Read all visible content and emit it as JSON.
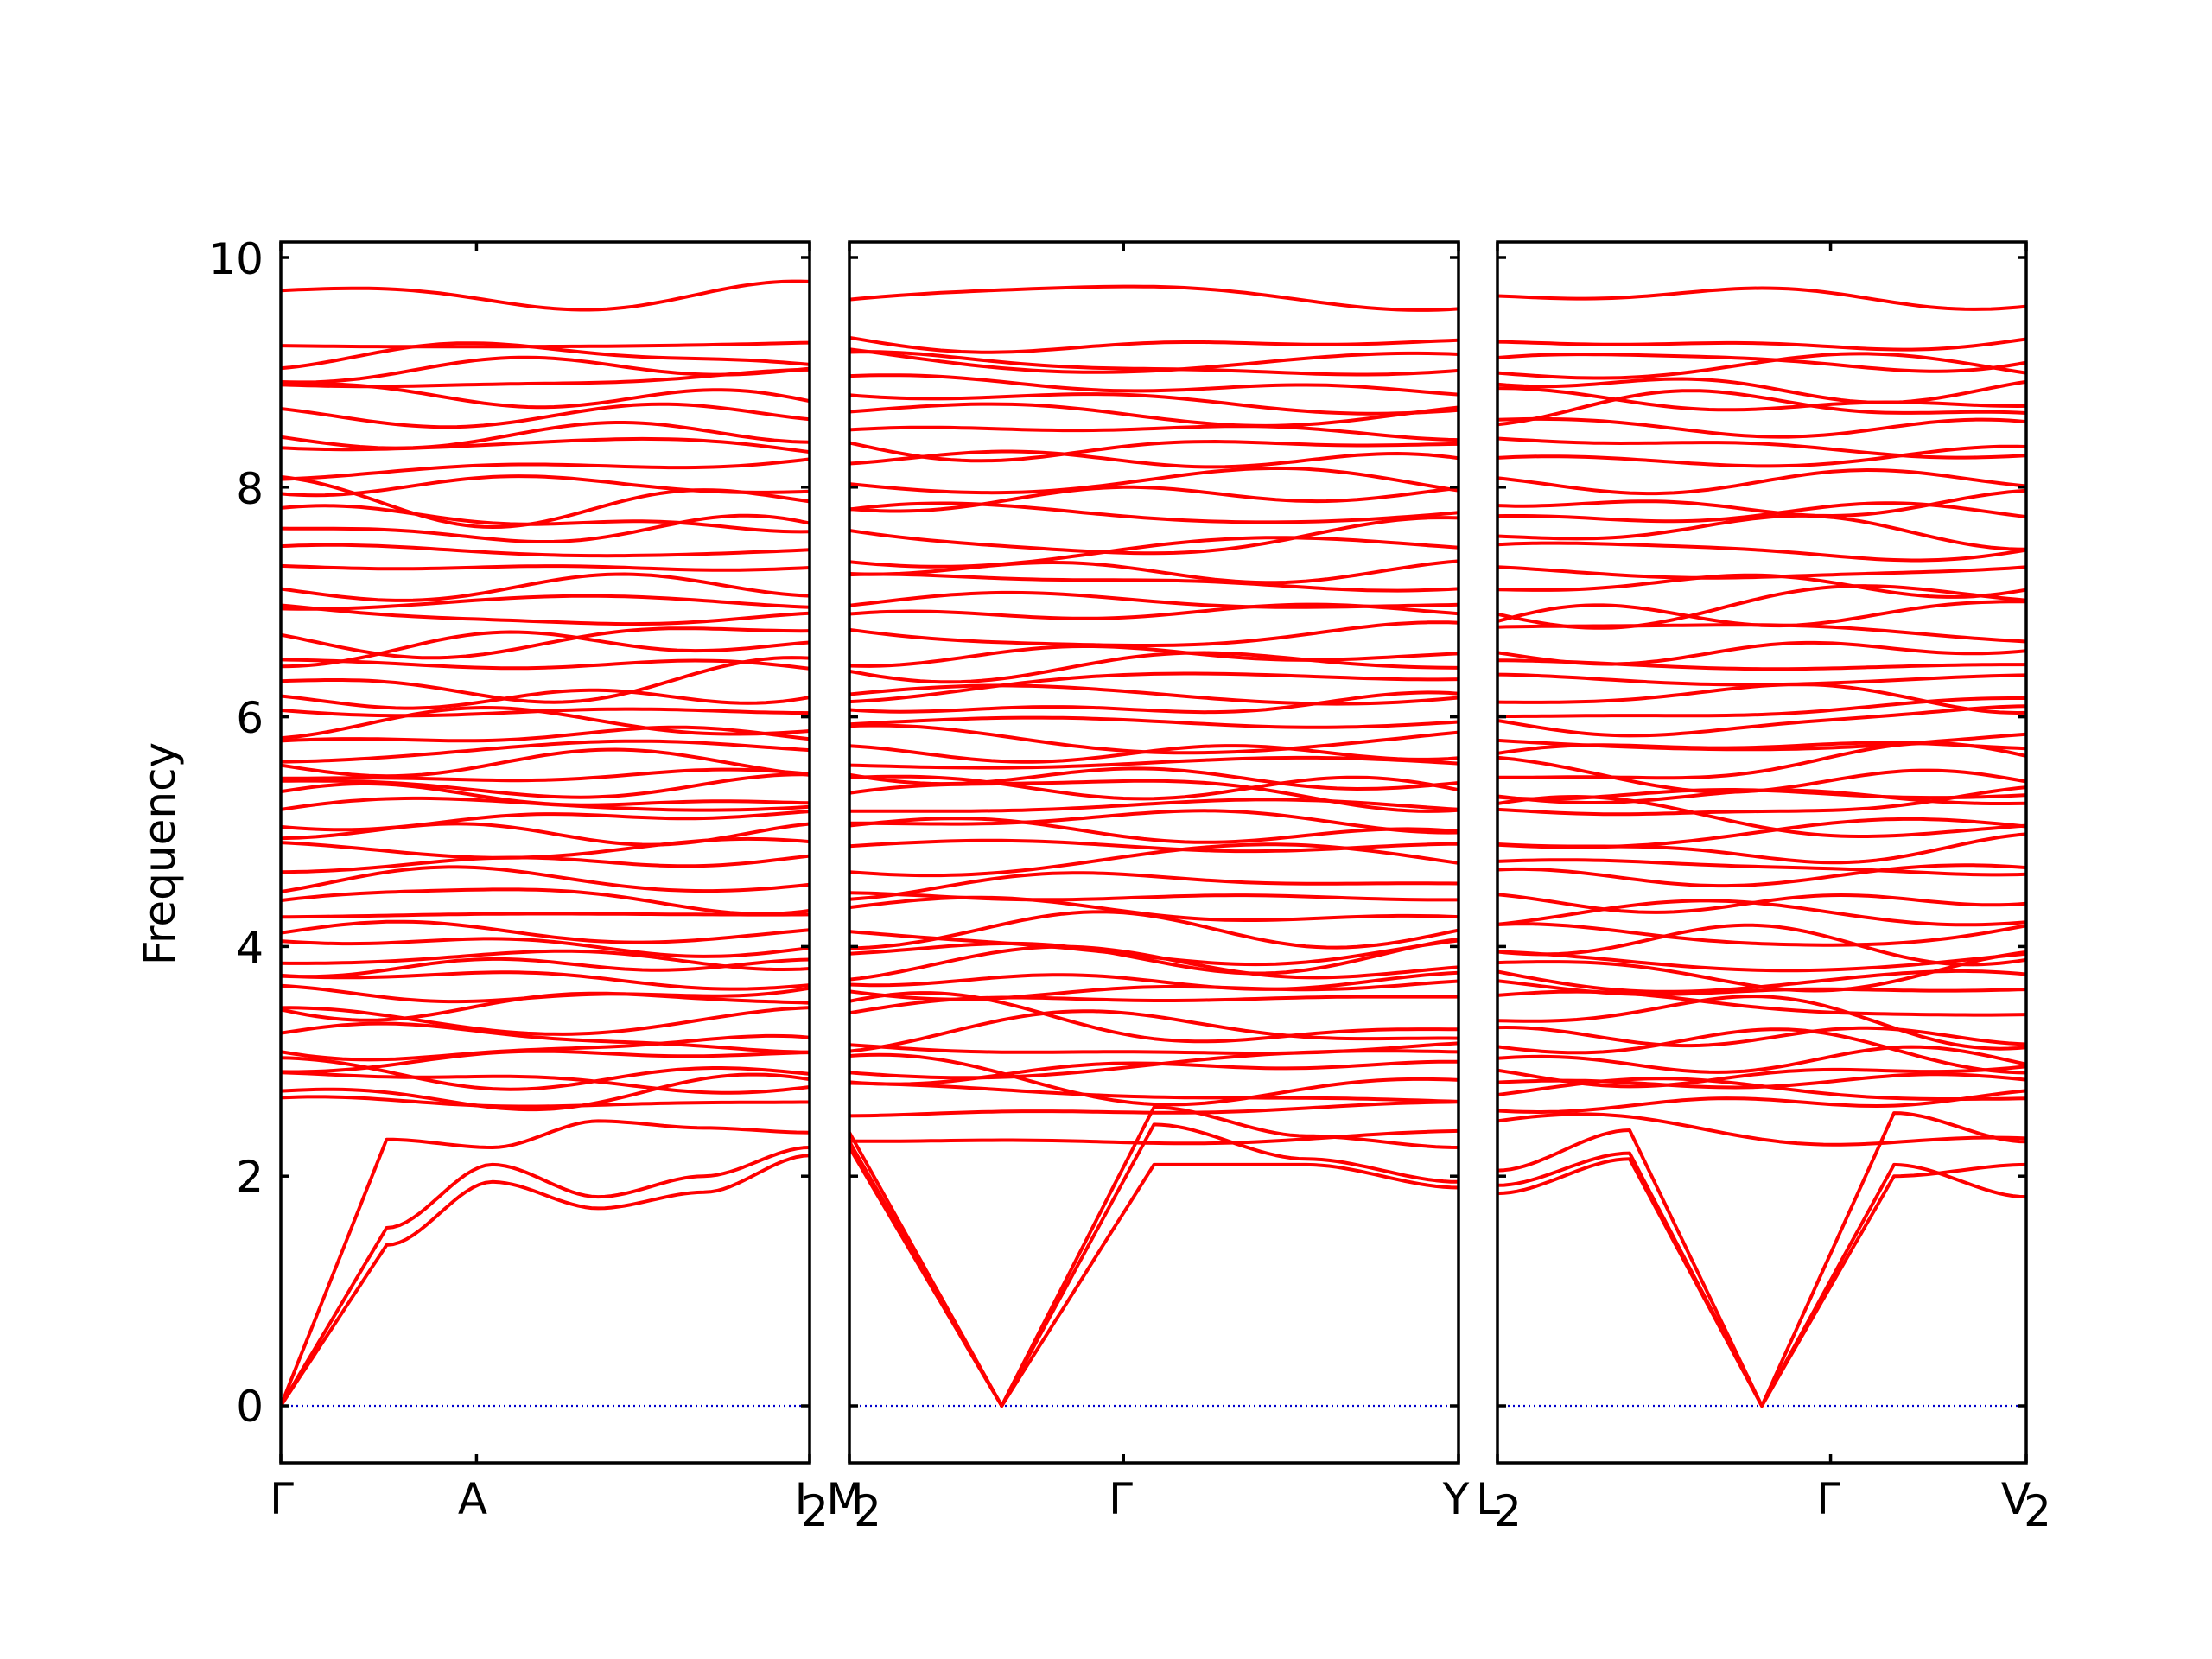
{
  "chart_data": {
    "type": "line",
    "ylabel": "Frequency",
    "ylim": [
      -0.5,
      10.2
    ],
    "yticks": [
      "0",
      "2",
      "4",
      "6",
      "8",
      "10"
    ],
    "xtick_labels": [
      "Γ",
      "A",
      "I",
      "2",
      "M",
      "2",
      "Γ",
      "Y",
      "L",
      "2",
      "Γ",
      "V",
      "2"
    ],
    "line_color": "#ff0000",
    "zero_line_color": "#0000cc",
    "panels": [
      {
        "path_labels": [
          "Γ",
          "A",
          "I₂"
        ],
        "x": [
          0,
          0.37,
          1
        ],
        "acoustic": [
          [
            0,
            2.32,
            2.25,
            2.48,
            2.42,
            2.38
          ],
          [
            0,
            1.55,
            2.1,
            1.82,
            2.0,
            2.25
          ],
          [
            0,
            1.4,
            1.95,
            1.72,
            1.86,
            2.18
          ]
        ],
        "optical_base": [
          2.62,
          2.72,
          2.82,
          2.9,
          3.0,
          3.1,
          3.22,
          3.35,
          3.5,
          3.62,
          3.72,
          3.82,
          3.92,
          4.02,
          4.12,
          4.28,
          4.42,
          4.58,
          4.72,
          4.85,
          4.98,
          5.1,
          5.2,
          5.3,
          5.38,
          5.48,
          5.58,
          5.7,
          5.82,
          5.95,
          6.08,
          6.2,
          6.32,
          6.45,
          6.58,
          6.72,
          6.88,
          7.0,
          7.15,
          7.3,
          7.45,
          7.6,
          7.75,
          7.9,
          8.05,
          8.2,
          8.35,
          8.5,
          8.65,
          8.78,
          8.9,
          9.02,
          9.12,
          9.25,
          9.65
        ]
      },
      {
        "path_labels": [
          "M₂",
          "Γ",
          "Y"
        ],
        "x": [
          0,
          0.45,
          1
        ],
        "acoustic": [
          [
            2.25,
            0,
            2.45,
            2.15,
            1.95
          ],
          [
            2.3,
            0,
            2.1,
            2.1,
            1.9
          ],
          [
            2.38,
            0,
            2.6,
            2.35,
            2.25
          ]
        ],
        "optical_base": [
          2.35,
          2.6,
          2.72,
          2.82,
          2.9,
          3.0,
          3.1,
          3.22,
          3.35,
          3.5,
          3.62,
          3.72,
          3.82,
          3.92,
          4.02,
          4.12,
          4.28,
          4.42,
          4.58,
          4.72,
          4.85,
          4.98,
          5.1,
          5.2,
          5.3,
          5.38,
          5.48,
          5.58,
          5.7,
          5.82,
          5.95,
          6.08,
          6.2,
          6.32,
          6.45,
          6.58,
          6.72,
          6.88,
          7.0,
          7.15,
          7.3,
          7.45,
          7.6,
          7.75,
          7.9,
          8.05,
          8.2,
          8.35,
          8.5,
          8.65,
          8.78,
          8.9,
          9.02,
          9.12,
          9.25,
          9.65
        ]
      },
      {
        "path_labels": [
          "L₂",
          "Γ",
          "V₂"
        ],
        "x": [
          0,
          0.63,
          1
        ],
        "acoustic": [
          [
            1.85,
            2.15,
            0,
            2.55,
            2.3
          ],
          [
            1.92,
            2.2,
            0,
            2.1,
            1.82
          ],
          [
            2.05,
            2.4,
            0,
            2.0,
            2.1
          ]
        ],
        "optical_base": [
          2.35,
          2.62,
          2.72,
          2.82,
          2.9,
          3.0,
          3.1,
          3.22,
          3.35,
          3.5,
          3.62,
          3.72,
          3.82,
          3.92,
          4.02,
          4.12,
          4.28,
          4.42,
          4.58,
          4.72,
          4.85,
          4.98,
          5.1,
          5.2,
          5.3,
          5.38,
          5.48,
          5.58,
          5.7,
          5.82,
          5.95,
          6.08,
          6.2,
          6.32,
          6.45,
          6.58,
          6.72,
          6.88,
          7.0,
          7.15,
          7.3,
          7.45,
          7.6,
          7.75,
          7.9,
          8.05,
          8.2,
          8.35,
          8.5,
          8.65,
          8.78,
          8.9,
          9.02,
          9.12,
          9.25,
          9.65
        ]
      }
    ]
  }
}
